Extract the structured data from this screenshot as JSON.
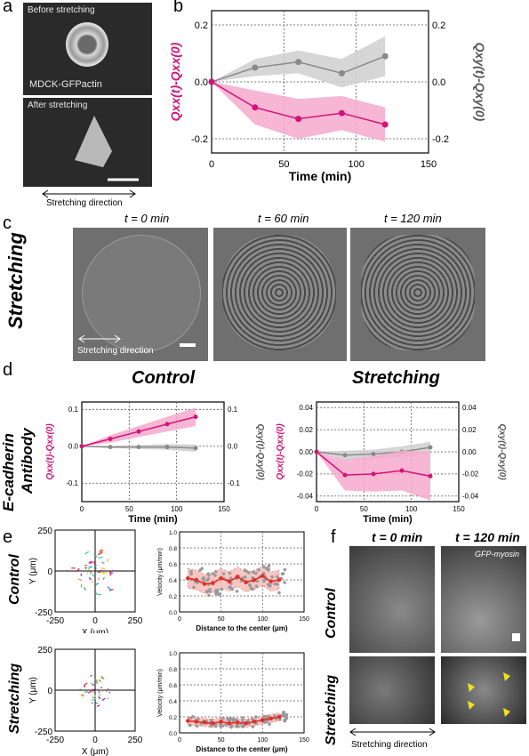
{
  "panel_labels": {
    "a": "a",
    "b": "b",
    "c": "c",
    "d": "d",
    "e": "e",
    "f": "f"
  },
  "panel_a": {
    "top_caption": "Before stretching",
    "cell_label": "MDCK-GFPactin",
    "bottom_caption": "After stretching",
    "direction": "Stretching direction"
  },
  "panel_c": {
    "row_label": "Stretching",
    "times": [
      "t = 0 min",
      "t = 60 min",
      "t = 120 min"
    ],
    "direction": "Stretching direction"
  },
  "panel_d": {
    "row_label_1": "E-cadherin",
    "row_label_2": "Antibody",
    "titles": [
      "Control",
      "Stretching"
    ]
  },
  "panel_e": {
    "row_labels": [
      "Control",
      "Stretching"
    ],
    "scatter_xlabel": "X (μm)",
    "scatter_ylabel": "Y (μm)"
  },
  "panel_f": {
    "times": [
      "t = 0 min",
      "t = 120 min"
    ],
    "marker": "GFP-myosin",
    "row_labels": [
      "Control",
      "Stretching"
    ],
    "direction": "Stretching direction"
  },
  "colors": {
    "magenta": "#d4137a",
    "grey": "#8a8a8a",
    "red": "#e0302a",
    "pink_band": "#f5a9cc",
    "grey_band": "#cfcfcf"
  },
  "chart_data": [
    {
      "id": "b",
      "type": "line",
      "xlabel": "Time (min)",
      "ylabel_left": "Qxx(t)-Qxx(0)",
      "ylabel_right": "Qxy(t)-Qxy(0)",
      "xlim": [
        0,
        150
      ],
      "ylim": [
        -0.25,
        0.25
      ],
      "xticks": [
        "0",
        "50",
        "100",
        "150"
      ],
      "yticks": [
        "0.2",
        "0.0",
        "-0.2"
      ],
      "grid": true,
      "series": [
        {
          "axis": "left",
          "x": [
            0,
            30,
            60,
            90,
            120
          ],
          "y": [
            0,
            -0.09,
            -0.13,
            -0.11,
            -0.15
          ],
          "band": [
            0,
            0.06,
            0.07,
            0.06,
            0.06
          ]
        },
        {
          "axis": "right",
          "x": [
            0,
            30,
            60,
            90,
            120
          ],
          "y": [
            0,
            0.05,
            0.07,
            0.03,
            0.09
          ],
          "band": [
            0,
            0.03,
            0.04,
            0.05,
            0.07
          ]
        }
      ]
    },
    {
      "id": "d-control",
      "type": "line",
      "xlabel": "Time (min)",
      "ylabel_left": "Qxx(t)-Qxx(0)",
      "ylabel_right": "Qxy(t)-Qxy(0)",
      "xlim": [
        0,
        150
      ],
      "ylim": [
        -0.15,
        0.12
      ],
      "xticks": [
        "0",
        "50",
        "100",
        "150"
      ],
      "yticks": [
        "0.1",
        "0.0",
        "-0.1"
      ],
      "grid": true,
      "series": [
        {
          "axis": "left",
          "x": [
            0,
            30,
            60,
            90,
            120
          ],
          "y": [
            0,
            0.02,
            0.04,
            0.06,
            0.08
          ],
          "band": [
            0,
            0.01,
            0.015,
            0.02,
            0.025
          ]
        },
        {
          "axis": "right",
          "x": [
            0,
            30,
            60,
            90,
            120
          ],
          "y": [
            0,
            -0.002,
            -0.002,
            -0.002,
            -0.005
          ],
          "band": [
            0,
            0.003,
            0.005,
            0.008,
            0.01
          ]
        }
      ]
    },
    {
      "id": "d-stretching",
      "type": "line",
      "xlabel": "Time (min)",
      "ylabel_left": "Qxx(t)-Qxx(0)",
      "ylabel_right": "Qxy(t)-Qxy(0)",
      "xlim": [
        0,
        150
      ],
      "ylim": [
        -0.045,
        0.045
      ],
      "xticks": [
        "0",
        "50",
        "100",
        "150"
      ],
      "yticks": [
        "0.04",
        "0.02",
        "0.00",
        "-0.02",
        "-0.04"
      ],
      "grid": true,
      "series": [
        {
          "axis": "left",
          "x": [
            0,
            30,
            60,
            90,
            120
          ],
          "y": [
            0,
            -0.021,
            -0.02,
            -0.017,
            -0.022
          ],
          "band": [
            0,
            0.014,
            0.016,
            0.018,
            0.022
          ]
        },
        {
          "axis": "right",
          "x": [
            0,
            30,
            60,
            90,
            120
          ],
          "y": [
            0,
            -0.003,
            -0.002,
            0.0,
            0.004
          ],
          "band": [
            0,
            0.004,
            0.004,
            0.005,
            0.005
          ]
        }
      ]
    },
    {
      "id": "e-control-velocity",
      "type": "scatter",
      "xlabel": "Distance to the center (μm)",
      "ylabel": "Velocity (μm/min)",
      "xlim": [
        0,
        150
      ],
      "ylim": [
        0,
        1
      ],
      "xticks": [
        "0",
        "50",
        "100",
        "150"
      ],
      "yticks": [
        "0.0",
        "0.2",
        "0.4",
        "0.6",
        "0.8",
        "1.0"
      ],
      "mean": {
        "x": [
          10,
          20,
          30,
          40,
          50,
          60,
          70,
          80,
          90,
          100,
          110,
          120
        ],
        "y": [
          0.42,
          0.4,
          0.35,
          0.36,
          0.42,
          0.38,
          0.44,
          0.37,
          0.4,
          0.45,
          0.38,
          0.4
        ]
      }
    },
    {
      "id": "e-stretching-velocity",
      "type": "scatter",
      "xlabel": "Distance to the center (μm)",
      "ylabel": "Velocity (μm/min)",
      "xlim": [
        0,
        150
      ],
      "ylim": [
        0,
        1
      ],
      "xticks": [
        "0",
        "50",
        "100",
        "150"
      ],
      "yticks": [
        "0.0",
        "0.2",
        "0.4",
        "0.6",
        "0.8",
        "1.0"
      ],
      "mean": {
        "x": [
          10,
          20,
          30,
          40,
          50,
          60,
          70,
          80,
          90,
          100,
          110,
          120
        ],
        "y": [
          0.15,
          0.14,
          0.13,
          0.12,
          0.14,
          0.12,
          0.13,
          0.12,
          0.14,
          0.16,
          0.18,
          0.2
        ]
      }
    },
    {
      "id": "e-trajectories",
      "type": "scatter",
      "xlabel": "X (μm)",
      "ylabel": "Y (μm)",
      "xlim": [
        -250,
        250
      ],
      "ylim": [
        -250,
        250
      ],
      "xticks": [
        "-250",
        "0",
        "250"
      ],
      "yticks": [
        "250",
        "0",
        "-250"
      ]
    }
  ]
}
